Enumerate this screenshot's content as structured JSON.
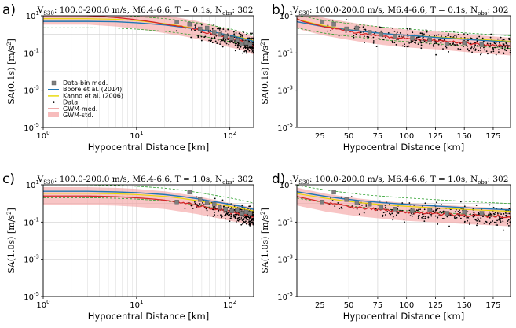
{
  "colors": {
    "gwm_med": "#d62728",
    "gwm_std": "#f4a6a6",
    "boore": "#1f77b4",
    "kanno": "#e8d800",
    "data": "#000000",
    "databin": "#7f7f7f",
    "dashed_std": "#2ca02c",
    "grid": "#cfcfcf"
  },
  "legend": {
    "databin": "Data-bin med.",
    "boore": "Boore et al. (2014)",
    "kanno": "Kanno et al. (2006)",
    "data": "Data",
    "gwm_med": "GWM-med.",
    "gwm_std": "GWM-std."
  },
  "chart_data": [
    {
      "panel": "a)",
      "type": "line",
      "title": "V_S30: 100.0-200.0 m/s,  M6.4-6.6, T = 0.1s, N_obs: 302",
      "title_vs": "V",
      "title_vs_sub": "S30",
      "title_mid": ": 100.0-200.0 m/s,  M6.4-6.6, T = 0.1s, N",
      "title_n_sub": "obs",
      "title_end": ": 302",
      "xscale": "log",
      "xlim": [
        1,
        180
      ],
      "xticks": [
        1,
        10,
        100
      ],
      "xtick_labels": [
        "10^0",
        "10^1",
        "10^2"
      ],
      "xlabel": "Hypocentral Distance [km]",
      "ylabel": "SA(0.1s) [m/s^2]",
      "ylabel_main": "SA(0.1s) [m/s",
      "ylabel_sup": "2",
      "ylabel_end": "]",
      "ylim_log10": [
        -5,
        1
      ],
      "yticks_exp": [
        -5,
        -3,
        -1,
        1
      ],
      "gwm_med": {
        "x": [
          1,
          3,
          6,
          10,
          20,
          30,
          45,
          60,
          80,
          100,
          130,
          160,
          180
        ],
        "y": [
          10,
          10,
          8,
          6,
          3.5,
          2.5,
          1.7,
          1.2,
          0.8,
          0.6,
          0.45,
          0.3,
          0.25
        ]
      },
      "gwm_std_factor": 3,
      "boore": {
        "x": [
          1,
          3,
          6,
          10,
          20,
          30,
          45,
          60,
          80,
          100,
          130,
          160,
          180
        ],
        "y": [
          5,
          5,
          4.8,
          4.2,
          3.2,
          2.5,
          1.9,
          1.5,
          1.1,
          0.9,
          0.65,
          0.5,
          0.42
        ]
      },
      "kanno": {
        "x": [
          1,
          3,
          6,
          10,
          20,
          30,
          45,
          60,
          80,
          100,
          130,
          160,
          180
        ],
        "y": [
          7,
          7,
          6.5,
          5.5,
          3.8,
          2.8,
          2.0,
          1.5,
          1.1,
          0.9,
          0.7,
          0.55,
          0.45
        ]
      },
      "databin": {
        "x": [
          27,
          37,
          48,
          57,
          68,
          78,
          90,
          105,
          120,
          135,
          150,
          165
        ],
        "y": [
          4.5,
          3.5,
          2.0,
          2.2,
          1.3,
          1.0,
          0.8,
          0.6,
          0.5,
          0.3,
          0.35,
          0.28
        ]
      },
      "scatter": {
        "xmin": 25,
        "xmax": 180,
        "n": 302
      }
    },
    {
      "panel": "b)",
      "type": "line",
      "title": "V_S30: 100.0-200.0 m/s,  M6.4-6.6, T = 0.1s, N_obs: 302",
      "title_vs": "V",
      "title_vs_sub": "S30",
      "title_mid": ": 100.0-200.0 m/s,  M6.4-6.6, T = 0.1s, N",
      "title_n_sub": "obs",
      "title_end": ": 302",
      "xscale": "linear",
      "xlim": [
        5,
        190
      ],
      "xticks": [
        25,
        50,
        75,
        100,
        125,
        150,
        175
      ],
      "xtick_labels": [
        "25",
        "50",
        "75",
        "100",
        "125",
        "150",
        "175"
      ],
      "xlabel": "Hypocentral Distance [km]",
      "ylabel": "SA(0.1s) [m/s^2]",
      "ylabel_main": "SA(0.1s) [m/s",
      "ylabel_sup": "2",
      "ylabel_end": "]",
      "ylim_log10": [
        -5,
        1
      ],
      "yticks_exp": [
        -5,
        -3,
        -1,
        1
      ],
      "gwm_med": {
        "x": [
          5,
          10,
          20,
          30,
          45,
          60,
          80,
          100,
          130,
          160,
          190
        ],
        "y": [
          7,
          5,
          3.5,
          2.5,
          1.7,
          1.2,
          0.8,
          0.6,
          0.45,
          0.3,
          0.22
        ]
      },
      "gwm_std_factor": 3,
      "boore": {
        "x": [
          5,
          10,
          20,
          30,
          45,
          60,
          80,
          100,
          130,
          160,
          190
        ],
        "y": [
          4.8,
          4.2,
          3.2,
          2.5,
          1.9,
          1.5,
          1.1,
          0.9,
          0.65,
          0.5,
          0.38
        ]
      },
      "kanno": {
        "x": [
          5,
          10,
          20,
          30,
          45,
          60,
          80,
          100,
          130,
          160,
          190
        ],
        "y": [
          6.5,
          5.5,
          3.8,
          2.8,
          2.0,
          1.5,
          1.1,
          0.9,
          0.7,
          0.55,
          0.42
        ]
      },
      "databin": {
        "x": [
          27,
          37,
          48,
          57,
          68,
          78,
          90,
          105,
          120,
          135,
          150,
          165
        ],
        "y": [
          4.5,
          3.5,
          2.0,
          2.2,
          1.3,
          1.0,
          0.8,
          0.6,
          0.5,
          0.3,
          0.35,
          0.28
        ]
      },
      "scatter": {
        "xmin": 25,
        "xmax": 190,
        "n": 302
      }
    },
    {
      "panel": "c)",
      "type": "line",
      "title": "V_S30: 100.0-200.0 m/s,  M6.4-6.6, T = 1.0s, N_obs: 302",
      "title_vs": "V",
      "title_vs_sub": "S30",
      "title_mid": ": 100.0-200.0 m/s,  M6.4-6.6, T = 1.0s, N",
      "title_n_sub": "obs",
      "title_end": ": 302",
      "xscale": "log",
      "xlim": [
        1,
        180
      ],
      "xticks": [
        1,
        10,
        100
      ],
      "xtick_labels": [
        "10^0",
        "10^1",
        "10^2"
      ],
      "xlabel": "Hypocentral Distance [km]",
      "ylabel": "SA(1.0s) [m/s^2]",
      "ylabel_main": "SA(1.0s) [m/s",
      "ylabel_sup": "2",
      "ylabel_end": "]",
      "ylim_log10": [
        -5,
        1
      ],
      "yticks_exp": [
        -5,
        -3,
        -1,
        1
      ],
      "gwm_med": {
        "x": [
          1,
          3,
          6,
          10,
          20,
          30,
          45,
          60,
          80,
          100,
          130,
          160,
          180
        ],
        "y": [
          2.5,
          2.5,
          2.3,
          2.0,
          1.5,
          1.1,
          0.8,
          0.6,
          0.45,
          0.35,
          0.28,
          0.22,
          0.2
        ]
      },
      "gwm_std_factor": 3,
      "boore": {
        "x": [
          1,
          3,
          6,
          10,
          20,
          30,
          45,
          60,
          80,
          100,
          130,
          160,
          180
        ],
        "y": [
          4.5,
          4.5,
          4.2,
          3.8,
          3.0,
          2.4,
          1.8,
          1.4,
          1.1,
          0.9,
          0.7,
          0.55,
          0.48
        ]
      },
      "kanno": {
        "x": [
          1,
          3,
          6,
          10,
          20,
          30,
          45,
          60,
          80,
          100,
          130,
          160,
          180
        ],
        "y": [
          3.5,
          3.5,
          3.3,
          3.0,
          2.4,
          1.9,
          1.4,
          1.1,
          0.85,
          0.7,
          0.55,
          0.45,
          0.4
        ]
      },
      "databin": {
        "x": [
          27,
          37,
          48,
          57,
          68,
          78,
          90,
          105,
          120,
          135,
          150,
          165
        ],
        "y": [
          1.2,
          4.0,
          1.6,
          1.1,
          0.9,
          0.6,
          0.5,
          0.4,
          0.45,
          0.3,
          0.35,
          0.3
        ]
      },
      "scatter": {
        "xmin": 25,
        "xmax": 180,
        "n": 302
      }
    },
    {
      "panel": "d)",
      "type": "line",
      "title": "V_S30: 100.0-200.0 m/s,  M6.4-6.6, T = 1.0s, N_obs: 302",
      "title_vs": "V",
      "title_vs_sub": "S30",
      "title_mid": ": 100.0-200.0 m/s,  M6.4-6.6, T = 1.0s, N",
      "title_n_sub": "obs",
      "title_end": ": 302",
      "xscale": "linear",
      "xlim": [
        5,
        190
      ],
      "xticks": [
        25,
        50,
        75,
        100,
        125,
        150,
        175
      ],
      "xtick_labels": [
        "25",
        "50",
        "75",
        "100",
        "125",
        "150",
        "175"
      ],
      "xlabel": "Hypocentral Distance [km]",
      "ylabel": "SA(1.0s) [m/s^2]",
      "ylabel_main": "SA(1.0s) [m/s",
      "ylabel_sup": "2",
      "ylabel_end": "]",
      "ylim_log10": [
        -5,
        1
      ],
      "yticks_exp": [
        -5,
        -3,
        -1,
        1
      ],
      "gwm_med": {
        "x": [
          5,
          10,
          20,
          30,
          45,
          60,
          80,
          100,
          130,
          160,
          190
        ],
        "y": [
          2.4,
          2.0,
          1.5,
          1.1,
          0.8,
          0.6,
          0.45,
          0.35,
          0.28,
          0.22,
          0.18
        ]
      },
      "gwm_std_factor": 3,
      "boore": {
        "x": [
          5,
          10,
          20,
          30,
          45,
          60,
          80,
          100,
          130,
          160,
          190
        ],
        "y": [
          4.3,
          3.8,
          3.0,
          2.4,
          1.8,
          1.4,
          1.1,
          0.9,
          0.7,
          0.55,
          0.45
        ]
      },
      "kanno": {
        "x": [
          5,
          10,
          20,
          30,
          45,
          60,
          80,
          100,
          130,
          160,
          190
        ],
        "y": [
          3.4,
          3.0,
          2.4,
          1.9,
          1.4,
          1.1,
          0.85,
          0.7,
          0.55,
          0.45,
          0.38
        ]
      },
      "databin": {
        "x": [
          27,
          37,
          48,
          57,
          68,
          78,
          90,
          105,
          120,
          135,
          150,
          165
        ],
        "y": [
          1.2,
          4.0,
          1.6,
          1.1,
          0.9,
          0.6,
          0.5,
          0.4,
          0.45,
          0.3,
          0.35,
          0.3
        ]
      },
      "scatter": {
        "xmin": 25,
        "xmax": 190,
        "n": 302
      }
    }
  ]
}
